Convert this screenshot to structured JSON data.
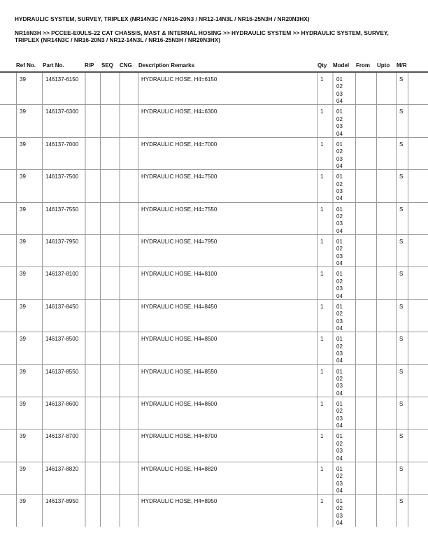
{
  "title": "HYDRAULIC SYSTEM, SURVEY, TRIPLEX (NR14N3C / NR16-20N3 / NR12-14N3L / NR16-25N3H / NR20N3HX)",
  "breadcrumb": "NR16N3H >> PCCEE-E0ULS-22 CAT CHASSIS, MAST & INTERNAL HOSING >> HYDRAULIC SYSTEM >> HYDRAULIC SYSTEM, SURVEY, TRIPLEX (NR14N3C / NR16-20N3 / NR12-14N3L / NR16-25N3H / NR20N3HX)",
  "columns": [
    "Ref No.",
    "Part No.",
    "R/P",
    "SEQ",
    "CNG",
    "Description Remarks",
    "Qty",
    "Model",
    "From",
    "Upto",
    "M/R"
  ],
  "rows": [
    {
      "ref": "39",
      "part": "146137-6150",
      "desc": "HYDRAULIC HOSE, H4=6150",
      "qty": "1",
      "model": [
        "01",
        "02",
        "03",
        "04"
      ],
      "mr": "S"
    },
    {
      "ref": "39",
      "part": "146137-6300",
      "desc": "HYDRAULIC HOSE, H4=6300",
      "qty": "1",
      "model": [
        "01",
        "02",
        "03",
        "04"
      ],
      "mr": "S"
    },
    {
      "ref": "39",
      "part": "146137-7000",
      "desc": "HYDRAULIC HOSE, H4=7000",
      "qty": "1",
      "model": [
        "01",
        "02",
        "03",
        "04"
      ],
      "mr": "S"
    },
    {
      "ref": "39",
      "part": "146137-7500",
      "desc": "HYDRAULIC HOSE, H4=7500",
      "qty": "1",
      "model": [
        "01",
        "02",
        "03",
        "04"
      ],
      "mr": "S"
    },
    {
      "ref": "39",
      "part": "146137-7550",
      "desc": "HYDRAULIC HOSE, H4=7550",
      "qty": "1",
      "model": [
        "01",
        "02",
        "03",
        "04"
      ],
      "mr": "S"
    },
    {
      "ref": "39",
      "part": "146137-7950",
      "desc": "HYDRAULIC HOSE, H4=7950",
      "qty": "1",
      "model": [
        "01",
        "02",
        "03",
        "04"
      ],
      "mr": "S"
    },
    {
      "ref": "39",
      "part": "146137-8100",
      "desc": "HYDRAULIC HOSE, H4=8100",
      "qty": "1",
      "model": [
        "01",
        "02",
        "03",
        "04"
      ],
      "mr": "S"
    },
    {
      "ref": "39",
      "part": "146137-8450",
      "desc": "HYDRAULIC HOSE, H4=8450",
      "qty": "1",
      "model": [
        "01",
        "02",
        "03",
        "04"
      ],
      "mr": "S"
    },
    {
      "ref": "39",
      "part": "146137-8500",
      "desc": "HYDRAULIC HOSE, H4=8500",
      "qty": "1",
      "model": [
        "01",
        "02",
        "03",
        "04"
      ],
      "mr": "S"
    },
    {
      "ref": "39",
      "part": "146137-8550",
      "desc": "HYDRAULIC HOSE, H4=8550",
      "qty": "1",
      "model": [
        "01",
        "02",
        "03",
        "04"
      ],
      "mr": "S"
    },
    {
      "ref": "39",
      "part": "146137-8600",
      "desc": "HYDRAULIC HOSE, H4=8600",
      "qty": "1",
      "model": [
        "01",
        "02",
        "03",
        "04"
      ],
      "mr": "S"
    },
    {
      "ref": "39",
      "part": "146137-8700",
      "desc": "HYDRAULIC HOSE, H4=8700",
      "qty": "1",
      "model": [
        "01",
        "02",
        "03",
        "04"
      ],
      "mr": "S"
    },
    {
      "ref": "39",
      "part": "146137-8820",
      "desc": "HYDRAULIC HOSE, H4=8820",
      "qty": "1",
      "model": [
        "01",
        "02",
        "03",
        "04"
      ],
      "mr": "S"
    },
    {
      "ref": "39",
      "part": "146137-8950",
      "desc": "HYDRAULIC HOSE, H4=8950",
      "qty": "1",
      "model": [
        "01",
        "02",
        "03",
        "04"
      ],
      "mr": "S"
    }
  ]
}
